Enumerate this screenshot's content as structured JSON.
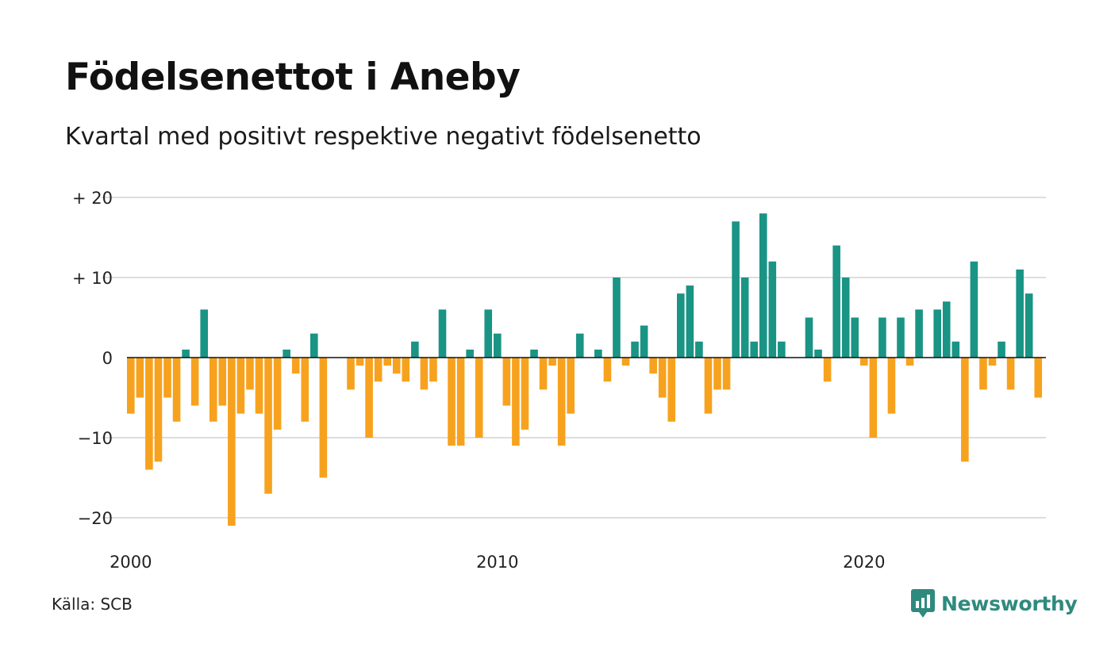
{
  "title": "Födelsenettot i Aneby",
  "subtitle": "Kvartal med positivt respektive negativt födelsenetto",
  "source": "Källa: SCB",
  "brand": {
    "name": "Newsworthy",
    "icon": "newsworthy-logo-icon"
  },
  "colors": {
    "positive": "#1a9484",
    "negative": "#f7a21e",
    "grid": "#dddddd",
    "zero": "#111111",
    "brand": "#2f8a7e"
  },
  "chart_data": {
    "type": "bar",
    "y_tick_labels": [
      "+ 20",
      "+ 10",
      "0",
      "−10",
      "−20"
    ],
    "y_ticks": [
      20,
      10,
      0,
      -10,
      -20
    ],
    "x_tick_labels": [
      "2000",
      "2010",
      "2020"
    ],
    "x_ticks": [
      "2000Q1",
      "2010Q1",
      "2020Q1"
    ],
    "ylim": [
      -23,
      20
    ],
    "grid": true,
    "legend": "none",
    "categories": [
      "2000Q1",
      "2000Q2",
      "2000Q3",
      "2000Q4",
      "2001Q1",
      "2001Q2",
      "2001Q3",
      "2001Q4",
      "2002Q1",
      "2002Q2",
      "2002Q3",
      "2002Q4",
      "2003Q1",
      "2003Q2",
      "2003Q3",
      "2003Q4",
      "2004Q1",
      "2004Q2",
      "2004Q3",
      "2004Q4",
      "2005Q1",
      "2005Q2",
      "2005Q3",
      "2005Q4",
      "2006Q1",
      "2006Q2",
      "2006Q3",
      "2006Q4",
      "2007Q1",
      "2007Q2",
      "2007Q3",
      "2007Q4",
      "2008Q1",
      "2008Q2",
      "2008Q3",
      "2008Q4",
      "2009Q1",
      "2009Q2",
      "2009Q3",
      "2009Q4",
      "2010Q1",
      "2010Q2",
      "2010Q3",
      "2010Q4",
      "2011Q1",
      "2011Q2",
      "2011Q3",
      "2011Q4",
      "2012Q1",
      "2012Q2",
      "2012Q3",
      "2012Q4",
      "2013Q1",
      "2013Q2",
      "2013Q3",
      "2013Q4",
      "2014Q1",
      "2014Q2",
      "2014Q3",
      "2014Q4",
      "2015Q1",
      "2015Q2",
      "2015Q3",
      "2015Q4",
      "2016Q1",
      "2016Q2",
      "2016Q3",
      "2016Q4",
      "2017Q1",
      "2017Q2",
      "2017Q3",
      "2017Q4",
      "2018Q1",
      "2018Q2",
      "2018Q3",
      "2018Q4",
      "2019Q1",
      "2019Q2",
      "2019Q3",
      "2019Q4",
      "2020Q1",
      "2020Q2",
      "2020Q3",
      "2020Q4",
      "2021Q1",
      "2021Q2",
      "2021Q3",
      "2021Q4",
      "2022Q1",
      "2022Q2",
      "2022Q3",
      "2022Q4",
      "2023Q1",
      "2023Q2",
      "2023Q3",
      "2023Q4",
      "2024Q1",
      "2024Q2",
      "2024Q3",
      "2024Q4",
      "2025Q1"
    ],
    "values": [
      -7,
      -5,
      -14,
      -13,
      -5,
      -8,
      1,
      -6,
      6,
      -8,
      -6,
      -21,
      -7,
      -4,
      -7,
      -17,
      -9,
      1,
      -2,
      -8,
      3,
      -15,
      0,
      0,
      -4,
      -1,
      -10,
      -3,
      -1,
      -2,
      -3,
      2,
      -4,
      -3,
      6,
      -11,
      -11,
      1,
      -10,
      6,
      3,
      -6,
      -11,
      -9,
      1,
      -4,
      -1,
      -11,
      -7,
      3,
      0,
      1,
      -3,
      10,
      -1,
      2,
      4,
      -2,
      -5,
      -8,
      8,
      9,
      2,
      -7,
      -4,
      -4,
      17,
      10,
      2,
      18,
      12,
      2,
      0,
      0,
      5,
      1,
      -3,
      14,
      10,
      5,
      -1,
      -10,
      5,
      -7,
      5,
      -1,
      6,
      0,
      6,
      7,
      2,
      -13,
      12,
      -4,
      -1,
      2,
      -4,
      11,
      8,
      -5,
      0
    ]
  }
}
